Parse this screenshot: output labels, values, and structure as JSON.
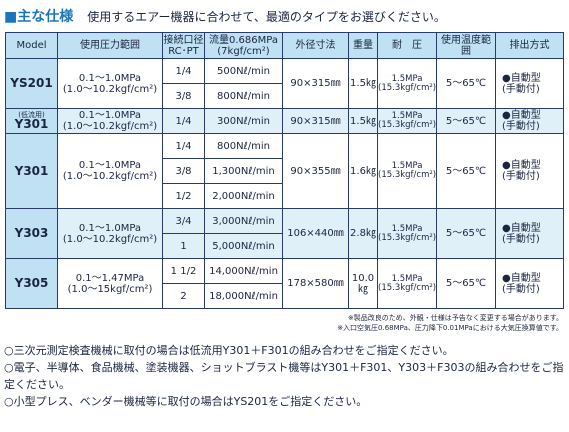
{
  "header": {
    "mark": "■主な仕様",
    "subtitle": "使用するエアー機器に合わせて、最適のタイプをお選びください。"
  },
  "table": {
    "columns": [
      "Model",
      "使用圧力範囲",
      [
        "接続口径",
        "RC･PT"
      ],
      [
        "流量0.686MPa",
        "(7kgf/cm²)"
      ],
      "外径寸法",
      "重量",
      "耐　圧",
      "使用温度範囲",
      "排出方式"
    ],
    "groups": [
      {
        "model": "YS201",
        "pressure": [
          "0.1～1.0MPa",
          "(1.0～10.2kgf/cm²)"
        ],
        "ports": [
          "1/4",
          "3/8"
        ],
        "flows": [
          "500Nℓ/min",
          "800Nℓ/min"
        ],
        "dims": "90×315㎜",
        "weight": "1.5㎏",
        "proof": [
          "1.5MPa",
          "(15.3kgf/cm²)"
        ],
        "temp": "5～65℃",
        "discharge": [
          "●自動型",
          "(手動付)"
        ]
      },
      {
        "model_note": "(低流用)",
        "model": "Y301",
        "pressure": [
          "0.1～1.0MPa",
          "(1.0～10.2kgf/cm²)"
        ],
        "ports": [
          "1/4"
        ],
        "flows": [
          "300Nℓ/min"
        ],
        "dims": "90×315㎜",
        "weight": "1.5㎏",
        "proof": [
          "1.5MPa",
          "(15.3kgf/cm²)"
        ],
        "temp": "5～65℃",
        "discharge": [
          "●自動型",
          "(手動付)"
        ]
      },
      {
        "model": "Y301",
        "pressure": [
          "0.1～1.0MPa",
          "(1.0～10.2kgf/cm²)"
        ],
        "ports": [
          "1/4",
          "3/8",
          "1/2"
        ],
        "flows": [
          "800Nℓ/min",
          "1,300Nℓ/min",
          "2,000Nℓ/min"
        ],
        "dims": "90×355㎜",
        "weight": "1.6㎏",
        "proof": [
          "1.5MPa",
          "(15.3kgf/cm²)"
        ],
        "temp": "5～65℃",
        "discharge": [
          "●自動型",
          "(手動付)"
        ]
      },
      {
        "model": "Y303",
        "pressure": [
          "0.1～1.0MPa",
          "(1.0～10.2kgf/cm²)"
        ],
        "ports": [
          "3/4",
          "1"
        ],
        "flows": [
          "3,000Nℓ/min",
          "5,000Nℓ/min"
        ],
        "dims": "106×440㎜",
        "weight": "2.8㎏",
        "proof": [
          "1.5MPa",
          "(15.3kgf/cm²)"
        ],
        "temp": "5～65℃",
        "discharge": [
          "●自動型",
          "(手動付)"
        ]
      },
      {
        "model": "Y305",
        "pressure": [
          "0.1～1.47MPa",
          "(1.0～15kgf/cm²)"
        ],
        "ports": [
          "1 1/2",
          "2"
        ],
        "flows": [
          "14,000Nℓ/min",
          "18,000Nℓ/min"
        ],
        "dims": "178×580㎜",
        "weight": "10.0㎏",
        "proof": [
          "1.5MPa",
          "(15.3kgf/cm²)"
        ],
        "temp": "5～65℃",
        "discharge": [
          "●自動型",
          "(手動付)"
        ]
      }
    ]
  },
  "notes": [
    "※製品改良のため、外観・仕様は予告なく変更する場合があります。",
    "※入口空気圧0.68MPa、圧力降下0.01MPaにおける大気圧換算値です。"
  ],
  "footer": [
    "○三次元測定検査機械に取付の場合は低流用Y301＋F301の組み合わせをご指定ください。",
    "○電子、半導体、食品機械、塗装機器、ショットブラスト機等はY301＋F301、Y303＋F303の組み合わせをご指定ください。",
    "○小型プレス、ベンダー機械等に取付の場合はYS201をご指定ください。"
  ]
}
